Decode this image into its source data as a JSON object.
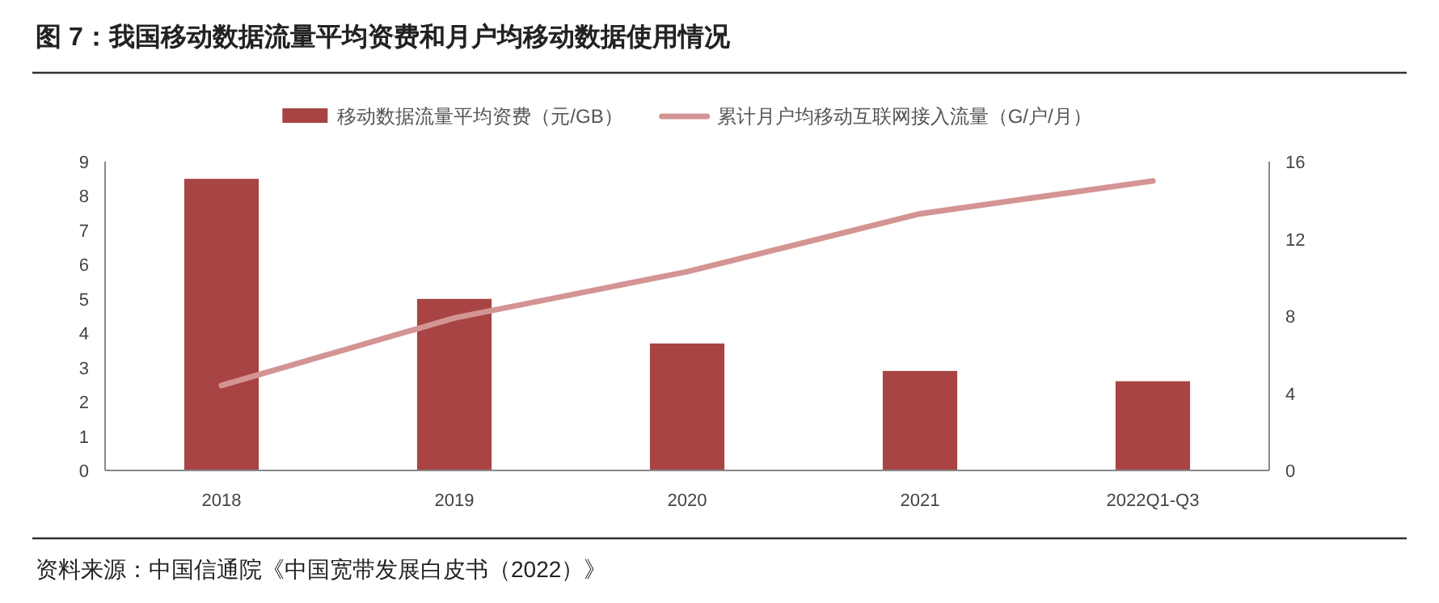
{
  "chart_data": {
    "type": "bar",
    "title": "图 7：我国移动数据流量平均资费和月户均移动数据使用情况",
    "categories": [
      "2018",
      "2019",
      "2020",
      "2021",
      "2022Q1-Q3"
    ],
    "series": [
      {
        "name": "移动数据流量平均资费（元/GB）",
        "color": "#a84444",
        "values": [
          8.5,
          5.0,
          3.7,
          2.9,
          2.6
        ]
      },
      {
        "name": "累计月户均移动互联网接入流量（G/户/月）",
        "type": "line",
        "axis": "y2",
        "color": "#d49494",
        "values": [
          4.4,
          7.9,
          10.3,
          13.3,
          15.0
        ]
      }
    ],
    "ylim": [
      0,
      9
    ],
    "yticks": [
      0,
      1,
      2,
      3,
      4,
      5,
      6,
      7,
      8,
      9
    ],
    "y2lim": [
      0,
      16
    ],
    "y2ticks": [
      0,
      4,
      8,
      12,
      16
    ],
    "legend": "top",
    "grid": false,
    "annotations": [
      "资料来源：中国信通院《中国宽带发展白皮书（2022）》"
    ]
  }
}
